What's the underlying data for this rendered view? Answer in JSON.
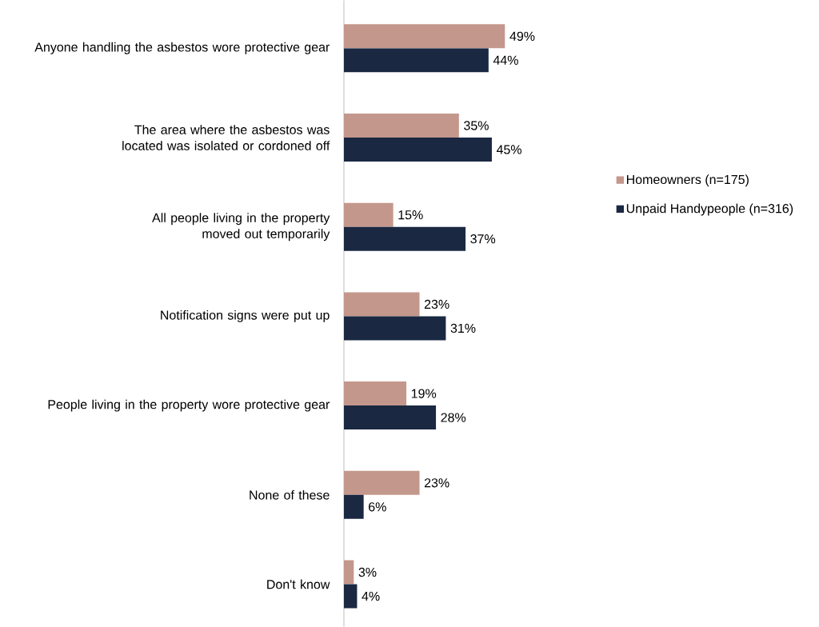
{
  "chart_data": {
    "type": "bar",
    "orientation": "horizontal",
    "legend": "right",
    "categories": [
      "Anyone handling the asbestos wore protective gear",
      "The area where the asbestos was located was isolated or cordoned off",
      "All people living in the property moved out temporarily",
      "Notification signs were put up",
      "People living in the property wore protective gear",
      "None of these",
      "Don't know"
    ],
    "series": [
      {
        "name": "Homeowners (n=175)",
        "color": "#c4978c",
        "values": [
          49,
          35,
          15,
          23,
          19,
          23,
          3
        ],
        "value_labels": [
          "49%",
          "35%",
          "15%",
          "23%",
          "19%",
          "23%",
          "3%"
        ]
      },
      {
        "name": "Unpaid Handypeople (n=316)",
        "color": "#1a2842",
        "values": [
          44,
          45,
          37,
          31,
          28,
          6,
          4
        ],
        "value_labels": [
          "44%",
          "45%",
          "37%",
          "31%",
          "28%",
          "6%",
          "4%"
        ]
      }
    ]
  }
}
